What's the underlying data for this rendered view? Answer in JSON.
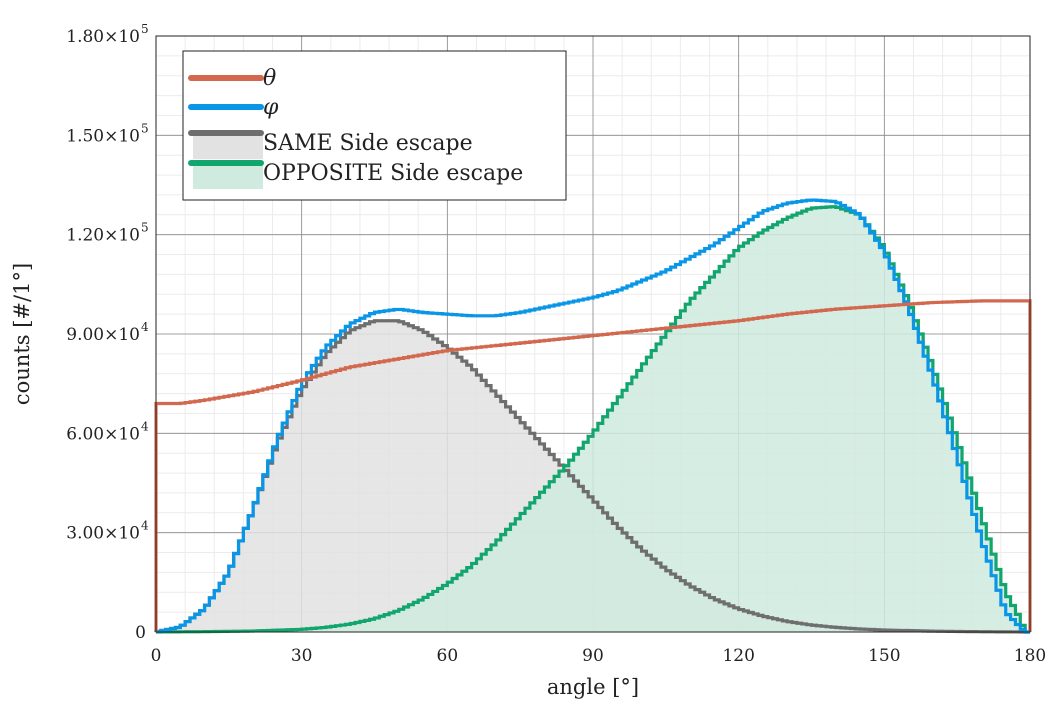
{
  "chart_data": {
    "type": "histogram",
    "xlabel": "angle [°]",
    "ylabel": "counts [#/1°]",
    "xlim": [
      0,
      180
    ],
    "ylim": [
      0,
      180000
    ],
    "grid": true,
    "minor_grid": true,
    "legend_position": "top-left",
    "x_ticks": [
      {
        "value": 0,
        "label": "0"
      },
      {
        "value": 30,
        "label": "30"
      },
      {
        "value": 60,
        "label": "60"
      },
      {
        "value": 90,
        "label": "90"
      },
      {
        "value": 120,
        "label": "120"
      },
      {
        "value": 150,
        "label": "150"
      },
      {
        "value": 180,
        "label": "180"
      }
    ],
    "y_ticks": [
      {
        "value": 0,
        "mantissa": "0",
        "exponent": ""
      },
      {
        "value": 30000,
        "mantissa": "3.00×10",
        "exponent": "4"
      },
      {
        "value": 60000,
        "mantissa": "6.00×10",
        "exponent": "4"
      },
      {
        "value": 90000,
        "mantissa": "9.00×10",
        "exponent": "4"
      },
      {
        "value": 120000,
        "mantissa": "1.20×10",
        "exponent": "5"
      },
      {
        "value": 150000,
        "mantissa": "1.50×10",
        "exponent": "5"
      },
      {
        "value": 180000,
        "mantissa": "1.80×10",
        "exponent": "5"
      }
    ],
    "bin_width": 1,
    "series": [
      {
        "name": "θ",
        "kind": "step",
        "color": "#d2694f",
        "x": [
          0,
          5,
          10,
          20,
          30,
          40,
          50,
          60,
          70,
          80,
          90,
          100,
          110,
          120,
          130,
          140,
          150,
          160,
          170,
          179
        ],
        "values": [
          69000,
          69000,
          70000,
          72500,
          76000,
          80000,
          82500,
          85000,
          86500,
          88000,
          89500,
          91000,
          92500,
          94000,
          96000,
          97500,
          98500,
          99500,
          100000,
          100000
        ]
      },
      {
        "name": "φ",
        "kind": "step",
        "color": "#0a96e6",
        "x": [
          0,
          5,
          10,
          15,
          20,
          25,
          30,
          35,
          40,
          45,
          50,
          55,
          60,
          65,
          70,
          75,
          80,
          85,
          90,
          95,
          100,
          105,
          110,
          115,
          120,
          125,
          130,
          135,
          140,
          145,
          150,
          155,
          160,
          165,
          170,
          175,
          179
        ],
        "values": [
          0,
          1500,
          7000,
          18000,
          37000,
          58000,
          75000,
          86000,
          93000,
          96500,
          97500,
          96500,
          96000,
          95500,
          95500,
          96500,
          98000,
          99500,
          101000,
          103000,
          106000,
          109000,
          113000,
          117000,
          122000,
          127000,
          129500,
          130500,
          130000,
          126000,
          115000,
          98000,
          77000,
          53000,
          28000,
          6000,
          0
        ]
      },
      {
        "name": "SAME Side escape",
        "kind": "filled-step",
        "color": "#6e6e6e",
        "fill": "#e2e2e2",
        "x": [
          0,
          5,
          10,
          15,
          20,
          25,
          30,
          35,
          40,
          45,
          50,
          55,
          60,
          65,
          70,
          75,
          80,
          85,
          90,
          95,
          100,
          105,
          110,
          115,
          120,
          125,
          130,
          135,
          140,
          145,
          150,
          160,
          170,
          179
        ],
        "values": [
          0,
          1500,
          7000,
          18000,
          37000,
          57000,
          73000,
          84000,
          91000,
          94000,
          94000,
          91000,
          86000,
          80000,
          72000,
          64000,
          56000,
          48000,
          40000,
          32000,
          25000,
          19000,
          14000,
          10000,
          7000,
          4800,
          3200,
          2100,
          1400,
          900,
          600,
          250,
          80,
          0
        ]
      },
      {
        "name": "OPPOSITE Side escape",
        "kind": "filled-step",
        "color": "#12a66e",
        "fill": "#cfeadf",
        "x": [
          0,
          10,
          20,
          30,
          35,
          40,
          45,
          50,
          55,
          60,
          65,
          70,
          75,
          80,
          85,
          90,
          95,
          100,
          105,
          110,
          115,
          120,
          125,
          130,
          135,
          140,
          145,
          150,
          155,
          160,
          165,
          170,
          175,
          178,
          179
        ],
        "values": [
          0,
          100,
          300,
          800,
          1400,
          2400,
          4000,
          6500,
          10000,
          14500,
          20000,
          27000,
          35000,
          43000,
          51000,
          60000,
          70000,
          80000,
          90000,
          100000,
          108000,
          116000,
          121000,
          125000,
          128000,
          128500,
          126000,
          116000,
          100000,
          80000,
          58000,
          35000,
          12000,
          4000,
          0
        ]
      }
    ]
  }
}
